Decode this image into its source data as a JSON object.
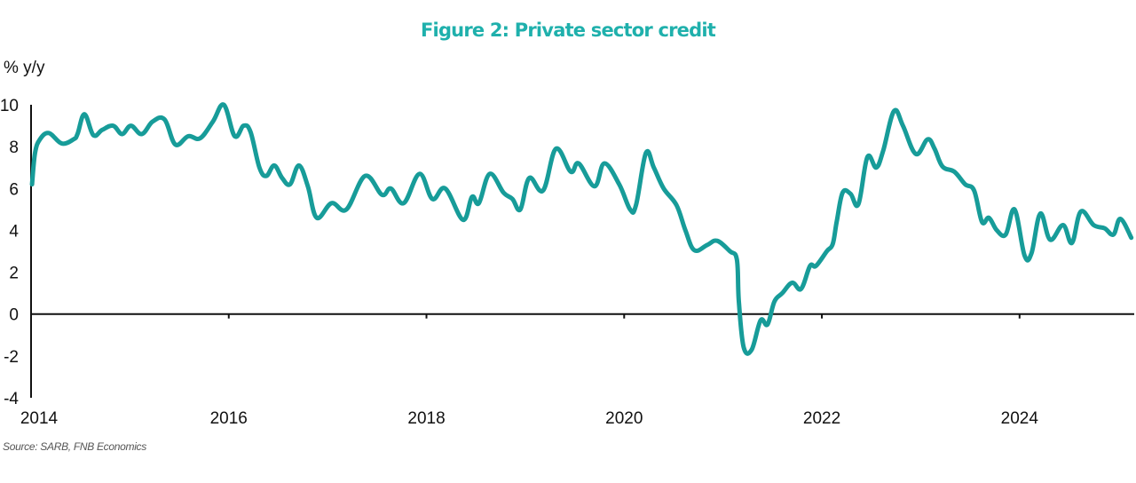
{
  "title": "Figure 2: Private sector credit",
  "source": "Source: SARB, FNB Economics",
  "colors": {
    "title": "#1fb0ac",
    "line": "#179c99",
    "axis": "#111111"
  },
  "chart_data": {
    "type": "line",
    "title": "Figure 2: Private sector credit",
    "xlabel": "",
    "ylabel": "% y/y",
    "xlim": [
      2014,
      2025.16
    ],
    "ylim": [
      -4,
      10
    ],
    "x_ticks": [
      2014,
      2016,
      2018,
      2020,
      2022,
      2024
    ],
    "x_tick_labels": [
      "2014",
      "2016",
      "2018",
      "2020",
      "2022",
      "2024"
    ],
    "y_ticks": [
      10,
      8,
      6,
      4,
      2,
      0,
      -2,
      -4
    ],
    "y_tick_labels": [
      "10",
      "8",
      "6",
      "4",
      "2",
      "0",
      "-2",
      "-4"
    ],
    "grid": false,
    "legend": "none",
    "series": [
      {
        "name": "Private sector credit",
        "x": [
          2014.01,
          2014.04,
          2014.09,
          2014.18,
          2014.31,
          2014.43,
          2014.47,
          2014.54,
          2014.63,
          2014.72,
          2014.83,
          2014.92,
          2015.01,
          2015.12,
          2015.23,
          2015.35,
          2015.46,
          2015.59,
          2015.71,
          2015.84,
          2015.95,
          2016.06,
          2016.15,
          2016.22,
          2016.31,
          2016.38,
          2016.46,
          2016.54,
          2016.62,
          2016.71,
          2016.8,
          2016.89,
          2017.04,
          2017.19,
          2017.38,
          2017.55,
          2017.64,
          2017.77,
          2017.93,
          2018.06,
          2018.19,
          2018.37,
          2018.46,
          2018.53,
          2018.64,
          2018.78,
          2018.87,
          2018.95,
          2019.04,
          2019.18,
          2019.31,
          2019.46,
          2019.54,
          2019.7,
          2019.8,
          2019.95,
          2020.06,
          2020.12,
          2020.22,
          2020.3,
          2020.4,
          2020.53,
          2020.62,
          2020.71,
          2020.84,
          2020.94,
          2021.07,
          2021.14,
          2021.16,
          2021.21,
          2021.29,
          2021.38,
          2021.45,
          2021.52,
          2021.6,
          2021.7,
          2021.79,
          2021.88,
          2021.94,
          2022.05,
          2022.11,
          2022.15,
          2022.21,
          2022.29,
          2022.37,
          2022.46,
          2022.55,
          2022.62,
          2022.73,
          2022.82,
          2022.95,
          2023.07,
          2023.14,
          2023.22,
          2023.34,
          2023.45,
          2023.54,
          2023.62,
          2023.69,
          2023.77,
          2023.86,
          2023.95,
          2024.05,
          2024.12,
          2024.21,
          2024.31,
          2024.44,
          2024.53,
          2024.62,
          2024.75,
          2024.86,
          2024.95,
          2025.02,
          2025.13
        ],
        "y": [
          6.2,
          7.7,
          8.35,
          8.65,
          8.15,
          8.35,
          8.6,
          9.55,
          8.55,
          8.8,
          9.0,
          8.6,
          9.0,
          8.6,
          9.2,
          9.3,
          8.1,
          8.5,
          8.4,
          9.2,
          10.0,
          8.5,
          9.0,
          8.7,
          7.0,
          6.6,
          7.1,
          6.5,
          6.2,
          7.1,
          6.1,
          4.6,
          5.3,
          5.0,
          6.6,
          5.7,
          6.0,
          5.3,
          6.7,
          5.5,
          6.0,
          4.5,
          5.6,
          5.3,
          6.7,
          5.8,
          5.5,
          5.0,
          6.5,
          5.9,
          7.9,
          6.8,
          7.2,
          6.1,
          7.2,
          6.2,
          5.0,
          5.2,
          7.7,
          7.0,
          6.0,
          5.2,
          4.0,
          3.05,
          3.3,
          3.5,
          3.0,
          2.6,
          0.6,
          -1.6,
          -1.7,
          -0.3,
          -0.5,
          0.6,
          1.0,
          1.5,
          1.2,
          2.3,
          2.3,
          3.0,
          3.35,
          4.4,
          5.8,
          5.75,
          5.25,
          7.5,
          7.0,
          7.8,
          9.7,
          9.0,
          7.65,
          8.35,
          7.9,
          7.05,
          6.8,
          6.2,
          5.9,
          4.4,
          4.6,
          4.0,
          3.8,
          5.0,
          2.8,
          2.9,
          4.8,
          3.55,
          4.25,
          3.4,
          4.9,
          4.25,
          4.1,
          3.8,
          4.55,
          3.65
        ]
      }
    ]
  }
}
